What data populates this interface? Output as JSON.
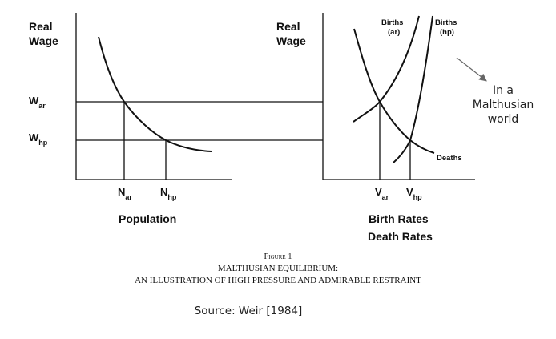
{
  "left_panel": {
    "y_axis_label": [
      "Real",
      "Wage"
    ],
    "wage_ar": {
      "main": "W",
      "sub": "ar"
    },
    "wage_hp": {
      "main": "W",
      "sub": "hp"
    },
    "pop_ar": {
      "main": "N",
      "sub": "ar"
    },
    "pop_hp": {
      "main": "N",
      "sub": "hp"
    },
    "x_axis_label": "Population"
  },
  "right_panel": {
    "y_axis_label": [
      "Real",
      "Wage"
    ],
    "births_ar": [
      "Births",
      "(ar)"
    ],
    "births_hp": [
      "Births",
      "(hp)"
    ],
    "deaths": "Deaths",
    "v_ar": {
      "main": "V",
      "sub": "ar"
    },
    "v_hp": {
      "main": "V",
      "sub": "hp"
    },
    "x_axis_label_1": "Birth Rates",
    "x_axis_label_2": "Death Rates"
  },
  "annotation": [
    "In a",
    "Malthusian",
    "world"
  ],
  "caption": {
    "figure": "Figure 1",
    "line1": "MALTHUSIAN EQUILIBRIUM:",
    "line2": "AN ILLUSTRATION OF HIGH PRESSURE AND ADMIRABLE RESTRAINT"
  },
  "source": "Source: Weir [1984]"
}
